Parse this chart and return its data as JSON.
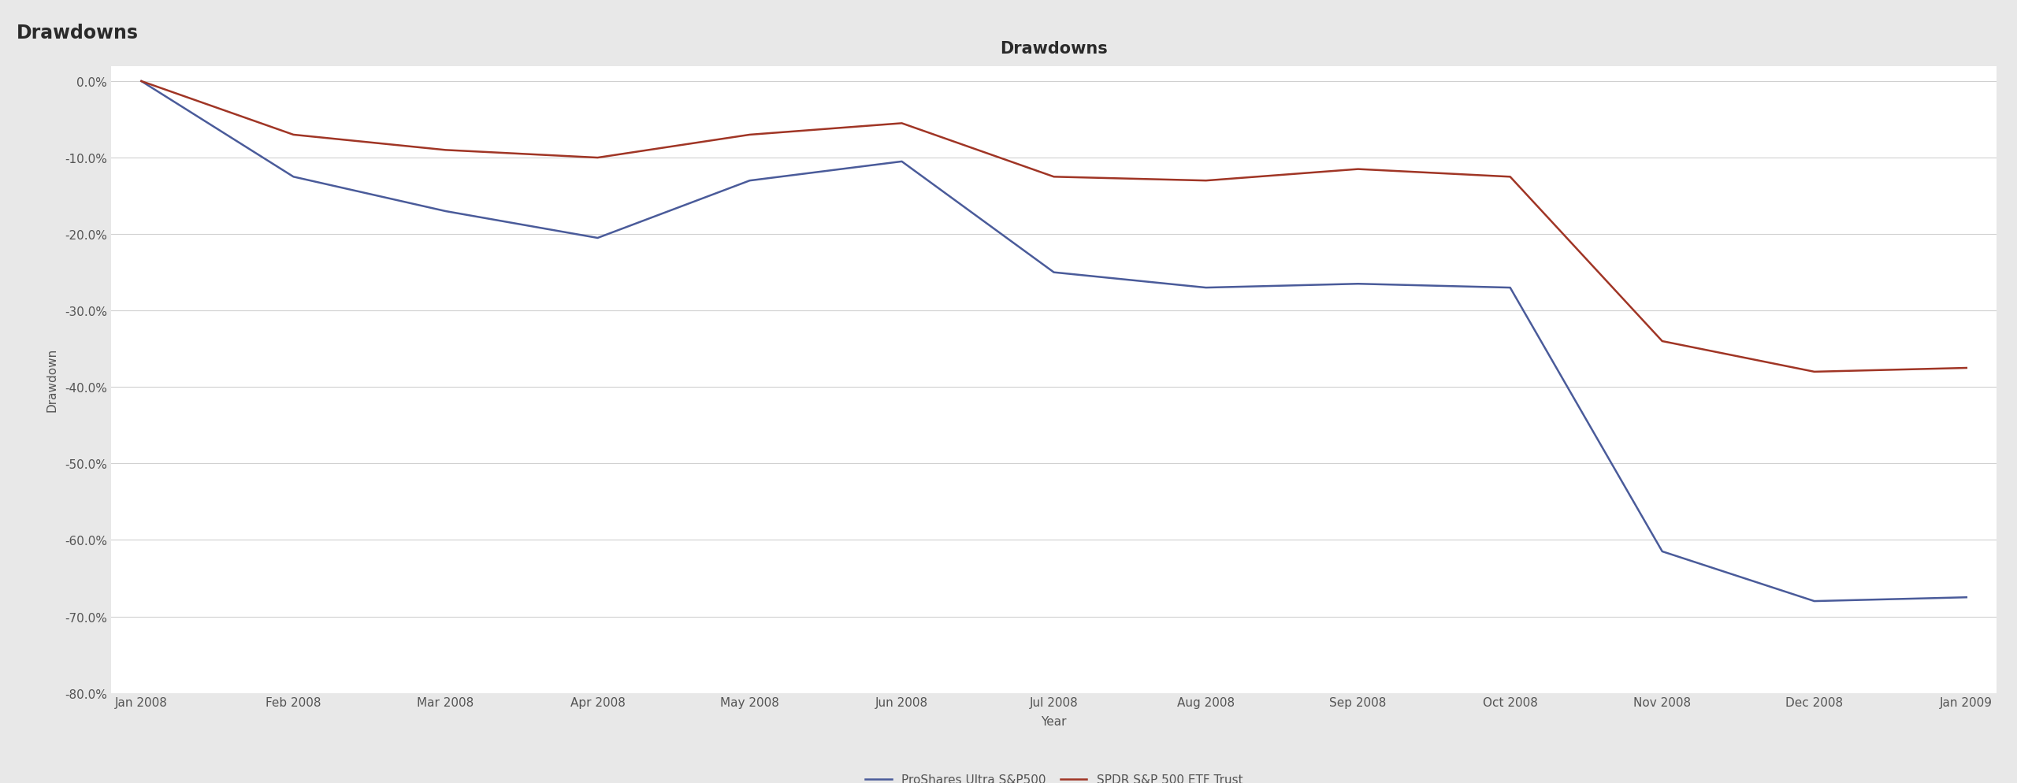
{
  "title": "Drawdowns",
  "header_title": "Drawdowns",
  "xlabel": "Year",
  "ylabel": "Drawdown",
  "figure_background": "#e8e8e8",
  "plot_background": "#ffffff",
  "header_background": "#e0e0e0",
  "x_labels": [
    "Jan 2008",
    "Feb 2008",
    "Mar 2008",
    "Apr 2008",
    "May 2008",
    "Jun 2008",
    "Jul 2008",
    "Aug 2008",
    "Sep 2008",
    "Oct 2008",
    "Nov 2008",
    "Dec 2008",
    "Jan 2009"
  ],
  "sso_values": [
    0.0,
    -12.5,
    -17.0,
    -20.5,
    -13.0,
    -10.5,
    -25.0,
    -27.0,
    -26.5,
    -27.0,
    -61.5,
    -68.0,
    -67.5
  ],
  "spy_values": [
    0.0,
    -7.0,
    -9.0,
    -10.0,
    -7.0,
    -5.5,
    -12.5,
    -13.0,
    -11.5,
    -12.5,
    -34.0,
    -38.0,
    -37.5
  ],
  "sso_color": "#4a5b9a",
  "spy_color": "#a03525",
  "ylim": [
    -80.0,
    2.0
  ],
  "yticks": [
    0.0,
    -10.0,
    -20.0,
    -30.0,
    -40.0,
    -50.0,
    -60.0,
    -70.0,
    -80.0
  ],
  "sso_label": "ProShares Ultra S&P500",
  "spy_label": "SPDR S&P 500 ETF Trust",
  "line_width": 1.8,
  "title_fontsize": 15,
  "tick_fontsize": 11,
  "legend_fontsize": 11,
  "axis_label_fontsize": 11,
  "header_fontsize": 17
}
